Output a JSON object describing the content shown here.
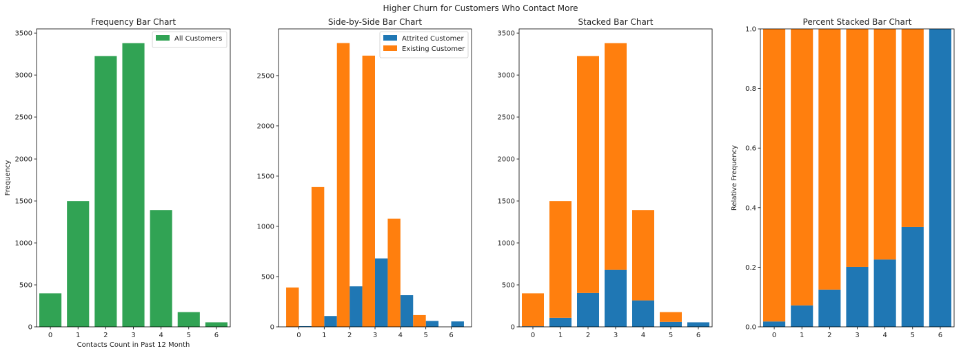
{
  "suptitle": "Higher Churn for Customers Who Contact More",
  "colors": {
    "all": "#31a354",
    "attrited": "#1f77b4",
    "existing": "#ff7f0e"
  },
  "chart_data": [
    {
      "type": "bar",
      "title": "Frequency Bar Chart",
      "xlabel": "Contacts Count in Past 12 Month",
      "ylabel": "Frequency",
      "categories": [
        "0",
        "1",
        "2",
        "3",
        "4",
        "5",
        "6"
      ],
      "series": [
        {
          "name": "All Customers",
          "values": [
            399,
            1499,
            3227,
            3380,
            1392,
            176,
            54
          ]
        }
      ],
      "ylim": [
        0,
        3550
      ],
      "yticks": [
        0,
        500,
        1000,
        1500,
        2000,
        2500,
        3000,
        3500
      ],
      "legend": "top-right"
    },
    {
      "type": "bar",
      "mode": "grouped",
      "title": "Side-by-Side Bar Chart",
      "xlabel": "",
      "ylabel": "",
      "categories": [
        "0",
        "1",
        "2",
        "3",
        "4",
        "5",
        "6"
      ],
      "series": [
        {
          "name": "Attrited Customer",
          "values": [
            7,
            108,
            403,
            681,
            315,
            59,
            54
          ]
        },
        {
          "name": "Existing Customer",
          "values": [
            392,
            1391,
            2824,
            2699,
            1077,
            117,
            0
          ]
        }
      ],
      "ylim": [
        0,
        2965
      ],
      "yticks": [
        0,
        500,
        1000,
        1500,
        2000,
        2500
      ],
      "legend": "top-right"
    },
    {
      "type": "bar",
      "mode": "stacked",
      "title": "Stacked Bar Chart",
      "xlabel": "",
      "ylabel": "",
      "categories": [
        "0",
        "1",
        "2",
        "3",
        "4",
        "5",
        "6"
      ],
      "series": [
        {
          "name": "Attrited Customer",
          "values": [
            7,
            108,
            403,
            681,
            315,
            59,
            54
          ]
        },
        {
          "name": "Existing Customer",
          "values": [
            392,
            1391,
            2824,
            2699,
            1077,
            117,
            0
          ]
        }
      ],
      "ylim": [
        0,
        3550
      ],
      "yticks": [
        0,
        500,
        1000,
        1500,
        2000,
        2500,
        3000,
        3500
      ]
    },
    {
      "type": "bar",
      "mode": "percent-stacked",
      "title": "Percent Stacked Bar Chart",
      "xlabel": "",
      "ylabel": "Relative Frequency",
      "categories": [
        "0",
        "1",
        "2",
        "3",
        "4",
        "5",
        "6"
      ],
      "series": [
        {
          "name": "Attrited Customer",
          "values": [
            0.018,
            0.072,
            0.125,
            0.201,
            0.226,
            0.335,
            1.0
          ]
        },
        {
          "name": "Existing Customer",
          "values": [
            0.982,
            0.928,
            0.875,
            0.799,
            0.774,
            0.665,
            0.0
          ]
        }
      ],
      "ylim": [
        0,
        1.0
      ],
      "yticks": [
        "0.0",
        "0.2",
        "0.4",
        "0.6",
        "0.8",
        "1.0"
      ]
    }
  ]
}
